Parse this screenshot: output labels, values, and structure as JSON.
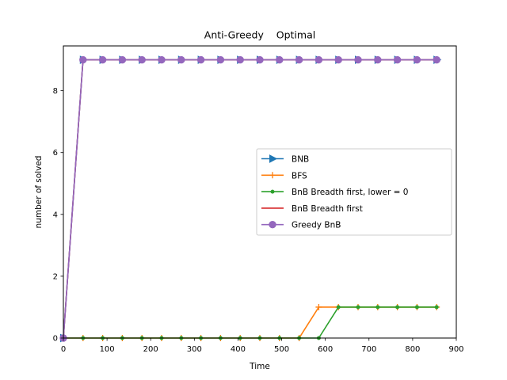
{
  "chart_data": {
    "type": "line",
    "title": "Anti-Greedy    Optimal",
    "xlabel": "Time",
    "ylabel": "number of solved",
    "xlim": [
      0,
      900
    ],
    "ylim": [
      0,
      9.45
    ],
    "xticks": [
      0,
      100,
      200,
      300,
      400,
      500,
      600,
      700,
      800,
      900
    ],
    "yticks": [
      0,
      2,
      4,
      6,
      8
    ],
    "grid": false,
    "legend_position": "center-right",
    "series": [
      {
        "name": "BNB",
        "color": "#1f77b4",
        "marker": "triangle-right",
        "x": [
          0,
          45,
          90,
          135,
          180,
          225,
          270,
          315,
          360,
          405,
          450,
          495,
          540,
          585,
          630,
          675,
          720,
          765,
          810,
          855
        ],
        "y": [
          0,
          9,
          9,
          9,
          9,
          9,
          9,
          9,
          9,
          9,
          9,
          9,
          9,
          9,
          9,
          9,
          9,
          9,
          9,
          9
        ]
      },
      {
        "name": "BFS",
        "color": "#ff7f0e",
        "marker": "plus",
        "x": [
          0,
          45,
          90,
          135,
          180,
          225,
          270,
          315,
          360,
          405,
          450,
          495,
          540,
          585,
          630,
          675,
          720,
          765,
          810,
          855
        ],
        "y": [
          0,
          0,
          0,
          0,
          0,
          0,
          0,
          0,
          0,
          0,
          0,
          0,
          0,
          1,
          1,
          1,
          1,
          1,
          1,
          1
        ]
      },
      {
        "name": "BnB Breadth first, lower = 0",
        "color": "#2ca02c",
        "marker": "dot",
        "x": [
          0,
          45,
          90,
          135,
          180,
          225,
          270,
          315,
          360,
          405,
          450,
          495,
          540,
          585,
          630,
          675,
          720,
          765,
          810,
          855
        ],
        "y": [
          0,
          0,
          0,
          0,
          0,
          0,
          0,
          0,
          0,
          0,
          0,
          0,
          0,
          0,
          1,
          1,
          1,
          1,
          1,
          1
        ]
      },
      {
        "name": "BnB Breadth first",
        "color": "#d62728",
        "marker": "none",
        "x": [
          0,
          45,
          90,
          135,
          180,
          225,
          270,
          315,
          360,
          405,
          450,
          495,
          540,
          585,
          630,
          675,
          720,
          765,
          810,
          855
        ],
        "y": [
          0,
          9,
          9,
          9,
          9,
          9,
          9,
          9,
          9,
          9,
          9,
          9,
          9,
          9,
          9,
          9,
          9,
          9,
          9,
          9
        ]
      },
      {
        "name": "Greedy BnB",
        "color": "#9467bd",
        "marker": "circle",
        "x": [
          0,
          45,
          90,
          135,
          180,
          225,
          270,
          315,
          360,
          405,
          450,
          495,
          540,
          585,
          630,
          675,
          720,
          765,
          810,
          855
        ],
        "y": [
          0,
          9,
          9,
          9,
          9,
          9,
          9,
          9,
          9,
          9,
          9,
          9,
          9,
          9,
          9,
          9,
          9,
          9,
          9,
          9
        ]
      }
    ]
  }
}
